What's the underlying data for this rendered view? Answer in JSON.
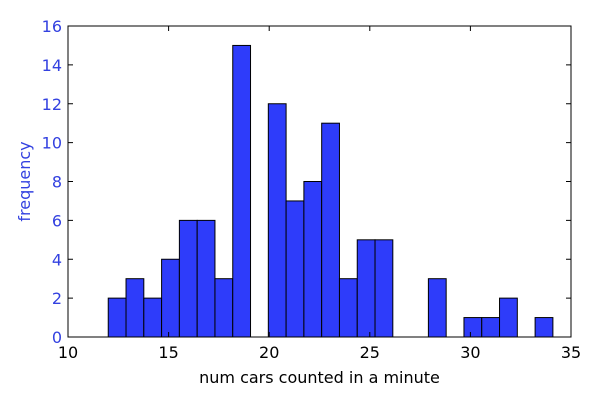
{
  "chart_data": {
    "type": "bar",
    "title": "",
    "xlabel": "num cars counted in a minute",
    "ylabel": "frequency",
    "xlim": [
      10,
      35
    ],
    "ylim": [
      0,
      16
    ],
    "xticks": [
      10,
      15,
      20,
      25,
      30,
      35
    ],
    "yticks": [
      0,
      2,
      4,
      6,
      8,
      10,
      12,
      14,
      16
    ],
    "grid": false,
    "bin_width": 0.884,
    "bins": [
      {
        "x": 12.0,
        "value": 2
      },
      {
        "x": 12.884,
        "value": 3
      },
      {
        "x": 13.768,
        "value": 2
      },
      {
        "x": 14.652,
        "value": 4
      },
      {
        "x": 15.536,
        "value": 6
      },
      {
        "x": 16.42,
        "value": 6
      },
      {
        "x": 17.304,
        "value": 3
      },
      {
        "x": 18.188,
        "value": 15
      },
      {
        "x": 19.072,
        "value": 0
      },
      {
        "x": 19.956,
        "value": 12
      },
      {
        "x": 20.84,
        "value": 7
      },
      {
        "x": 21.724,
        "value": 8
      },
      {
        "x": 22.608,
        "value": 11
      },
      {
        "x": 23.492,
        "value": 3
      },
      {
        "x": 24.376,
        "value": 5
      },
      {
        "x": 25.26,
        "value": 5
      },
      {
        "x": 26.144,
        "value": 0
      },
      {
        "x": 27.028,
        "value": 0
      },
      {
        "x": 27.912,
        "value": 3
      },
      {
        "x": 28.796,
        "value": 0
      },
      {
        "x": 29.68,
        "value": 1
      },
      {
        "x": 30.564,
        "value": 1
      },
      {
        "x": 31.448,
        "value": 2
      },
      {
        "x": 32.332,
        "value": 0
      },
      {
        "x": 33.216,
        "value": 1
      }
    ],
    "colors": {
      "bar_fill": "#2e3cfa",
      "bar_edge": "#000000",
      "ylabel_color": "#3341e0",
      "ytick_color": "#3341e0",
      "xtick_color": "#000000",
      "axes_color": "#000000"
    }
  }
}
